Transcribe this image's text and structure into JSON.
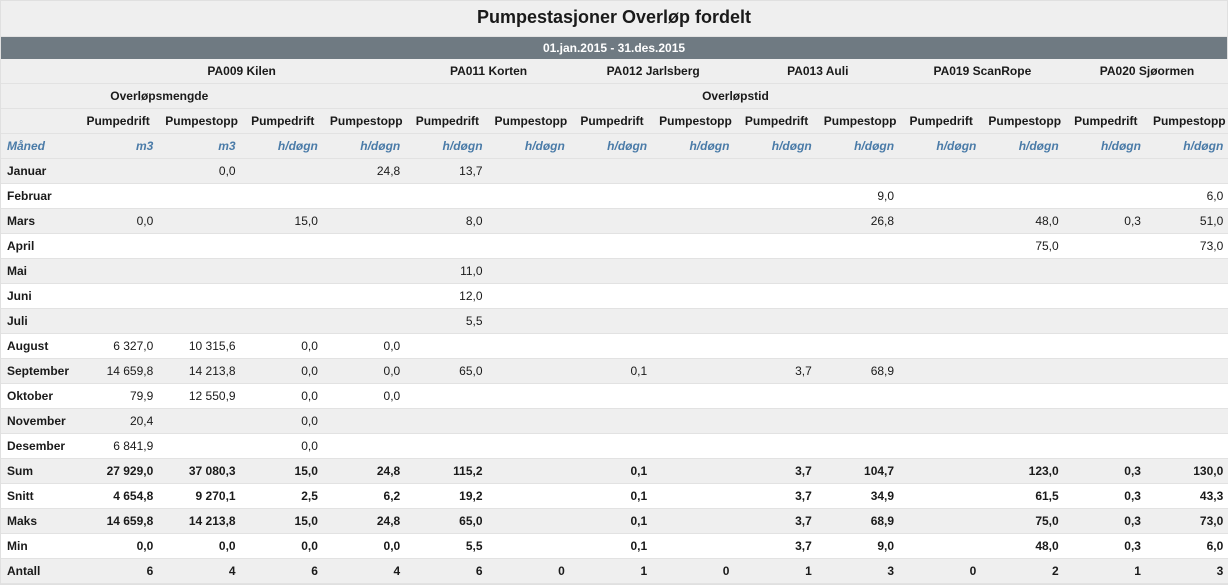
{
  "title": "Pumpestasjoner Overløp fordelt",
  "period": "01.jan.2015 - 31.des.2015",
  "row_header": "Måned",
  "stations": [
    {
      "name": "PA009 Kilen",
      "span": 4
    },
    {
      "name": "PA011 Korten",
      "span": 2
    },
    {
      "name": "PA012 Jarlsberg",
      "span": 2
    },
    {
      "name": "PA013 Auli",
      "span": 2
    },
    {
      "name": "PA019 ScanRope",
      "span": 2
    },
    {
      "name": "PA020 Sjøormen",
      "span": 2
    }
  ],
  "groups": [
    {
      "name": "Overløpsmengde",
      "span": 2
    },
    {
      "name": "Overløpstid",
      "span": 12
    }
  ],
  "subcols": [
    "Pumpedrift",
    "Pumpestopp",
    "Pumpedrift",
    "Pumpestopp",
    "Pumpedrift",
    "Pumpestopp",
    "Pumpedrift",
    "Pumpestopp",
    "Pumpedrift",
    "Pumpestopp",
    "Pumpedrift",
    "Pumpestopp",
    "Pumpedrift",
    "Pumpestopp"
  ],
  "units": [
    "m3",
    "m3",
    "h/døgn",
    "h/døgn",
    "h/døgn",
    "h/døgn",
    "h/døgn",
    "h/døgn",
    "h/døgn",
    "h/døgn",
    "h/døgn",
    "h/døgn",
    "h/døgn",
    "h/døgn"
  ],
  "months": [
    {
      "label": "Januar",
      "values": [
        "",
        "0,0",
        "",
        "24,8",
        "13,7",
        "",
        "",
        "",
        "",
        "",
        "",
        "",
        "",
        ""
      ]
    },
    {
      "label": "Februar",
      "values": [
        "",
        "",
        "",
        "",
        "",
        "",
        "",
        "",
        "",
        "9,0",
        "",
        "",
        "",
        "6,0"
      ]
    },
    {
      "label": "Mars",
      "values": [
        "0,0",
        "",
        "15,0",
        "",
        "8,0",
        "",
        "",
        "",
        "",
        "26,8",
        "",
        "48,0",
        "0,3",
        "51,0"
      ]
    },
    {
      "label": "April",
      "values": [
        "",
        "",
        "",
        "",
        "",
        "",
        "",
        "",
        "",
        "",
        "",
        "75,0",
        "",
        "73,0"
      ]
    },
    {
      "label": "Mai",
      "values": [
        "",
        "",
        "",
        "",
        "11,0",
        "",
        "",
        "",
        "",
        "",
        "",
        "",
        "",
        ""
      ]
    },
    {
      "label": "Juni",
      "values": [
        "",
        "",
        "",
        "",
        "12,0",
        "",
        "",
        "",
        "",
        "",
        "",
        "",
        "",
        ""
      ]
    },
    {
      "label": "Juli",
      "values": [
        "",
        "",
        "",
        "",
        "5,5",
        "",
        "",
        "",
        "",
        "",
        "",
        "",
        "",
        ""
      ]
    },
    {
      "label": "August",
      "values": [
        "6 327,0",
        "10 315,6",
        "0,0",
        "0,0",
        "",
        "",
        "",
        "",
        "",
        "",
        "",
        "",
        "",
        ""
      ]
    },
    {
      "label": "September",
      "values": [
        "14 659,8",
        "14 213,8",
        "0,0",
        "0,0",
        "65,0",
        "",
        "0,1",
        "",
        "3,7",
        "68,9",
        "",
        "",
        "",
        ""
      ]
    },
    {
      "label": "Oktober",
      "values": [
        "79,9",
        "12 550,9",
        "0,0",
        "0,0",
        "",
        "",
        "",
        "",
        "",
        "",
        "",
        "",
        "",
        ""
      ]
    },
    {
      "label": "November",
      "values": [
        "20,4",
        "",
        "0,0",
        "",
        "",
        "",
        "",
        "",
        "",
        "",
        "",
        "",
        "",
        ""
      ]
    },
    {
      "label": "Desember",
      "values": [
        "6 841,9",
        "",
        "0,0",
        "",
        "",
        "",
        "",
        "",
        "",
        "",
        "",
        "",
        "",
        ""
      ]
    }
  ],
  "summary": [
    {
      "label": "Sum",
      "values": [
        "27 929,0",
        "37 080,3",
        "15,0",
        "24,8",
        "115,2",
        "",
        "0,1",
        "",
        "3,7",
        "104,7",
        "",
        "123,0",
        "0,3",
        "130,0"
      ]
    },
    {
      "label": "Snitt",
      "values": [
        "4 654,8",
        "9 270,1",
        "2,5",
        "6,2",
        "19,2",
        "",
        "0,1",
        "",
        "3,7",
        "34,9",
        "",
        "61,5",
        "0,3",
        "43,3"
      ]
    },
    {
      "label": "Maks",
      "values": [
        "14 659,8",
        "14 213,8",
        "15,0",
        "24,8",
        "65,0",
        "",
        "0,1",
        "",
        "3,7",
        "68,9",
        "",
        "75,0",
        "0,3",
        "73,0"
      ]
    },
    {
      "label": "Min",
      "values": [
        "0,0",
        "0,0",
        "0,0",
        "0,0",
        "5,5",
        "",
        "0,1",
        "",
        "3,7",
        "9,0",
        "",
        "48,0",
        "0,3",
        "6,0"
      ]
    },
    {
      "label": "Antall",
      "values": [
        "6",
        "4",
        "6",
        "4",
        "6",
        "0",
        "1",
        "0",
        "1",
        "3",
        "0",
        "2",
        "1",
        "3"
      ]
    }
  ],
  "colors": {
    "header_bg": "#efefef",
    "period_bg": "#6f7a82",
    "period_fg": "#ffffff",
    "unit_fg": "#4a7ba8",
    "grid": "#e2e2e2"
  }
}
